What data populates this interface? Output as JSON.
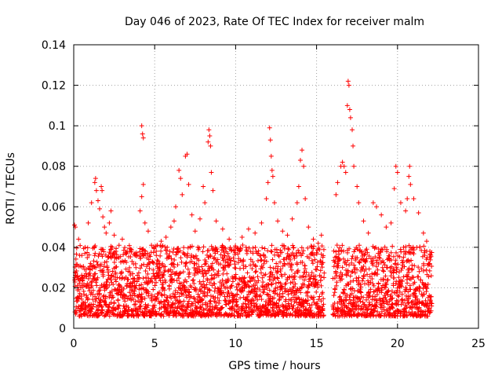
{
  "chart_data": {
    "type": "scatter",
    "title": "Day 046 of 2023, Rate Of TEC Index for receiver malm",
    "xlabel": "GPS time / hours",
    "ylabel": "ROTI / TECUs",
    "xlim": [
      0,
      25
    ],
    "ylim": [
      0,
      0.14
    ],
    "xticks": [
      "0",
      "5",
      "10",
      "15",
      "20",
      "25"
    ],
    "yticks": [
      "0",
      "0.02",
      "0.04",
      "0.06",
      "0.08",
      "0.1",
      "0.12",
      "0.14"
    ],
    "grid": true,
    "marker": "+",
    "color": "#ff0000",
    "series": [
      {
        "points": [
          [
            0.05,
            0.051
          ],
          [
            0.1,
            0.05
          ],
          [
            0.3,
            0.044
          ],
          [
            0.5,
            0.036
          ],
          [
            0.7,
            0.04
          ],
          [
            0.9,
            0.052
          ],
          [
            1.1,
            0.062
          ],
          [
            1.3,
            0.072
          ],
          [
            1.35,
            0.074
          ],
          [
            1.4,
            0.068
          ],
          [
            1.5,
            0.063
          ],
          [
            1.6,
            0.059
          ],
          [
            1.7,
            0.07
          ],
          [
            1.75,
            0.068
          ],
          [
            1.8,
            0.055
          ],
          [
            1.9,
            0.05
          ],
          [
            2.0,
            0.047
          ],
          [
            2.2,
            0.052
          ],
          [
            2.3,
            0.058
          ],
          [
            2.5,
            0.046
          ],
          [
            2.8,
            0.041
          ],
          [
            3.0,
            0.044
          ],
          [
            3.3,
            0.038
          ],
          [
            3.6,
            0.033
          ],
          [
            3.8,
            0.036
          ],
          [
            4.1,
            0.058
          ],
          [
            4.2,
            0.065
          ],
          [
            4.2,
            0.1
          ],
          [
            4.25,
            0.096
          ],
          [
            4.3,
            0.094
          ],
          [
            4.3,
            0.071
          ],
          [
            4.4,
            0.052
          ],
          [
            4.6,
            0.048
          ],
          [
            4.8,
            0.041
          ],
          [
            5.1,
            0.036
          ],
          [
            5.4,
            0.043
          ],
          [
            5.7,
            0.045
          ],
          [
            6.0,
            0.05
          ],
          [
            6.2,
            0.053
          ],
          [
            6.3,
            0.06
          ],
          [
            6.5,
            0.078
          ],
          [
            6.6,
            0.074
          ],
          [
            6.7,
            0.066
          ],
          [
            6.9,
            0.085
          ],
          [
            7.0,
            0.086
          ],
          [
            7.1,
            0.071
          ],
          [
            7.3,
            0.056
          ],
          [
            7.5,
            0.048
          ],
          [
            7.8,
            0.054
          ],
          [
            8.0,
            0.07
          ],
          [
            8.1,
            0.062
          ],
          [
            8.3,
            0.092
          ],
          [
            8.35,
            0.098
          ],
          [
            8.4,
            0.095
          ],
          [
            8.45,
            0.09
          ],
          [
            8.5,
            0.077
          ],
          [
            8.6,
            0.068
          ],
          [
            8.8,
            0.053
          ],
          [
            9.2,
            0.049
          ],
          [
            9.6,
            0.044
          ],
          [
            10.0,
            0.04
          ],
          [
            10.4,
            0.045
          ],
          [
            10.8,
            0.049
          ],
          [
            11.2,
            0.047
          ],
          [
            11.6,
            0.052
          ],
          [
            11.9,
            0.064
          ],
          [
            12.0,
            0.072
          ],
          [
            12.1,
            0.099
          ],
          [
            12.15,
            0.093
          ],
          [
            12.2,
            0.085
          ],
          [
            12.25,
            0.078
          ],
          [
            12.3,
            0.075
          ],
          [
            12.4,
            0.062
          ],
          [
            12.6,
            0.053
          ],
          [
            12.9,
            0.048
          ],
          [
            13.2,
            0.046
          ],
          [
            13.5,
            0.054
          ],
          [
            13.8,
            0.062
          ],
          [
            13.9,
            0.07
          ],
          [
            14.0,
            0.083
          ],
          [
            14.1,
            0.088
          ],
          [
            14.2,
            0.08
          ],
          [
            14.3,
            0.064
          ],
          [
            14.5,
            0.05
          ],
          [
            14.8,
            0.044
          ],
          [
            15.1,
            0.042
          ],
          [
            15.3,
            0.046
          ],
          [
            16.2,
            0.066
          ],
          [
            16.3,
            0.072
          ],
          [
            16.5,
            0.08
          ],
          [
            16.6,
            0.082
          ],
          [
            16.7,
            0.08
          ],
          [
            16.8,
            0.077
          ],
          [
            16.9,
            0.11
          ],
          [
            16.95,
            0.122
          ],
          [
            17.0,
            0.12
          ],
          [
            17.05,
            0.108
          ],
          [
            17.1,
            0.104
          ],
          [
            17.2,
            0.098
          ],
          [
            17.25,
            0.09
          ],
          [
            17.3,
            0.08
          ],
          [
            17.5,
            0.07
          ],
          [
            17.6,
            0.062
          ],
          [
            17.9,
            0.053
          ],
          [
            18.2,
            0.047
          ],
          [
            18.5,
            0.062
          ],
          [
            18.7,
            0.06
          ],
          [
            19.0,
            0.056
          ],
          [
            19.3,
            0.05
          ],
          [
            19.6,
            0.052
          ],
          [
            19.8,
            0.069
          ],
          [
            19.9,
            0.08
          ],
          [
            20.0,
            0.077
          ],
          [
            20.2,
            0.062
          ],
          [
            20.5,
            0.058
          ],
          [
            20.6,
            0.064
          ],
          [
            20.7,
            0.075
          ],
          [
            20.75,
            0.08
          ],
          [
            20.8,
            0.071
          ],
          [
            21.0,
            0.064
          ],
          [
            21.3,
            0.057
          ],
          [
            21.6,
            0.047
          ],
          [
            21.8,
            0.043
          ],
          [
            22.0,
            0.038
          ]
        ]
      }
    ],
    "dense_band": {
      "segments": [
        [
          0.05,
          15.45
        ],
        [
          16.0,
          22.1
        ]
      ],
      "typical_low": 0.006,
      "typical_high": 0.032
    }
  }
}
